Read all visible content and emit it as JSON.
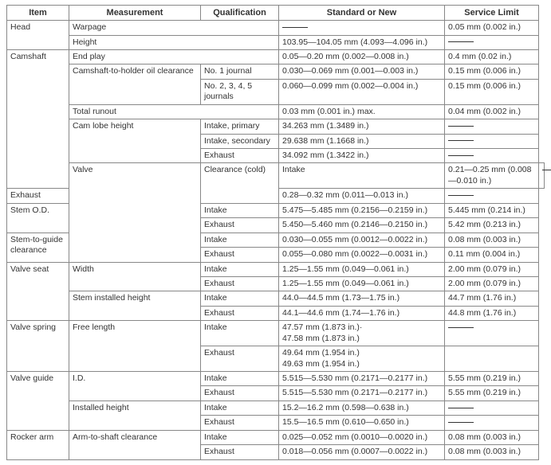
{
  "headers": [
    "Item",
    "Measurement",
    "Qualification",
    "Standard or New",
    "Service Limit"
  ],
  "rows": [
    {
      "item": "Head",
      "item_rowspan": 2,
      "measurement": "Warpage",
      "measurement_colspan": 2,
      "standard": null,
      "service": "0.05 mm (0.002 in.)"
    },
    {
      "measurement": "Height",
      "measurement_colspan": 2,
      "standard": "103.95—104.05 mm (4.093—4.096 in.)",
      "service": null
    },
    {
      "item": "Camshaft",
      "item_rowspan": 8,
      "measurement": "End play",
      "measurement_colspan": 2,
      "standard": "0.05—0.20 mm (0.002—0.008 in.)",
      "service": "0.4 mm (0.02 in.)"
    },
    {
      "measurement": "Camshaft-to-holder oil clearance",
      "measurement_rowspan": 2,
      "qualification": "No. 1 journal",
      "standard": "0.030—0.069 mm (0.001—0.003 in.)",
      "service": "0.15 mm (0.006 in.)"
    },
    {
      "qualification": "No. 2, 3, 4, 5 journals",
      "standard": "0.060—0.099 mm (0.002—0.004 in.)",
      "service": "0.15 mm (0.006 in.)"
    },
    {
      "measurement": "Total runout",
      "measurement_colspan": 2,
      "standard": "0.03 mm (0.001 in.) max.",
      "service": "0.04 mm (0.002 in.)"
    },
    {
      "measurement": "Cam lobe height",
      "measurement_rowspan": 4,
      "qualification": "Intake, primary",
      "standard": "34.263 mm (1.3489 in.)",
      "service": null
    },
    {
      "qualification": "Intake, secondary",
      "standard": "29.638 mm (1.1668 in.)",
      "service": null
    },
    {
      "qualification": "",
      "standard": "",
      "service": null
    },
    {
      "qualification": "Exhaust",
      "standard": "34.092 mm (1.3422 in.)",
      "service": null
    },
    {
      "item": "Valve",
      "item_rowspan": 6,
      "measurement": "Clearance (cold)",
      "measurement_rowspan": 2,
      "qualification": "Intake",
      "standard": "0.21—0.25 mm (0.008—0.010 in.)",
      "service": null
    },
    {
      "qualification": "Exhaust",
      "standard": "0.28—0.32 mm (0.011—0.013 in.)",
      "service": null
    },
    {
      "measurement": "Stem O.D.",
      "measurement_rowspan": 2,
      "qualification": "Intake",
      "standard": "5.475—5.485 mm (0.2156—0.2159 in.)",
      "service": "5.445 mm (0.214 in.)"
    },
    {
      "qualification": "Exhaust",
      "standard": "5.450—5.460 mm (0.2146—0.2150 in.)",
      "service": "5.42 mm (0.213 in.)"
    },
    {
      "measurement": "Stem-to-guide clearance",
      "measurement_rowspan": 2,
      "qualification": "Intake",
      "standard": "0.030—0.055 mm (0.0012—0.0022 in.)",
      "service": "0.08 mm (0.003 in.)"
    },
    {
      "qualification": "Exhaust",
      "standard": "0.055—0.080 mm (0.0022—0.0031 in.)",
      "service": "0.11 mm (0.004 in.)"
    },
    {
      "item": "Valve seat",
      "item_rowspan": 4,
      "measurement": "Width",
      "measurement_rowspan": 2,
      "qualification": "Intake",
      "standard": "1.25—1.55 mm (0.049—0.061 in.)",
      "service": "2.00 mm (0.079 in.)"
    },
    {
      "qualification": "Exhaust",
      "standard": "1.25—1.55 mm (0.049—0.061 in.)",
      "service": "2.00 mm (0.079 in.)"
    },
    {
      "measurement": "Stem installed height",
      "measurement_rowspan": 2,
      "qualification": "Intake",
      "standard": "44.0—44.5 mm (1.73—1.75 in.)",
      "service": "44.7 mm (1.76 in.)"
    },
    {
      "qualification": "Exhaust",
      "standard": "44.1—44.6 mm (1.74—1.76 in.)",
      "service": "44.8 mm (1.76 in.)"
    },
    {
      "item": "Valve spring",
      "item_rowspan": 3,
      "measurement": "Free length",
      "measurement_rowspan": 3,
      "qualification": "Intake",
      "standard": "47.57 mm (1.873 in.)·\n47.58 mm (1.873 in.)",
      "service": null
    },
    {
      "qualification": "",
      "standard": "",
      "blank_row": true
    },
    {
      "qualification": "Exhaust",
      "standard": "49.64 mm (1.954 in.)\n49.63 mm (1.954 in.)",
      "service": ""
    },
    {
      "item": "Valve guide",
      "item_rowspan": 4,
      "measurement": "I.D.",
      "measurement_rowspan": 2,
      "qualification": "Intake",
      "standard": "5.515—5.530 mm (0.2171—0.2177 in.)",
      "service": "5.55 mm (0.219 in.)"
    },
    {
      "qualification": "Exhaust",
      "standard": "5.515—5.530 mm (0.2171—0.2177 in.)",
      "service": "5.55 mm (0.219 in.)"
    },
    {
      "measurement": "Installed height",
      "measurement_rowspan": 2,
      "qualification": "Intake",
      "standard": "15.2—16.2 mm (0.598—0.638 in.)",
      "service": null
    },
    {
      "qualification": "Exhaust",
      "standard": "15.5—16.5 mm (0.610—0.650 in.)",
      "service": null
    },
    {
      "item": "Rocker arm",
      "item_rowspan": 2,
      "measurement": "Arm-to-shaft clearance",
      "measurement_rowspan": 2,
      "qualification": "Intake",
      "standard": "0.025—0.052 mm (0.0010—0.0020 in.)",
      "service": "0.08 mm (0.003 in.)"
    },
    {
      "qualification": "Exhaust",
      "standard": "0.018—0.056 mm (0.0007—0.0022 in.)",
      "service": "0.08 mm (0.003 in.)"
    }
  ]
}
